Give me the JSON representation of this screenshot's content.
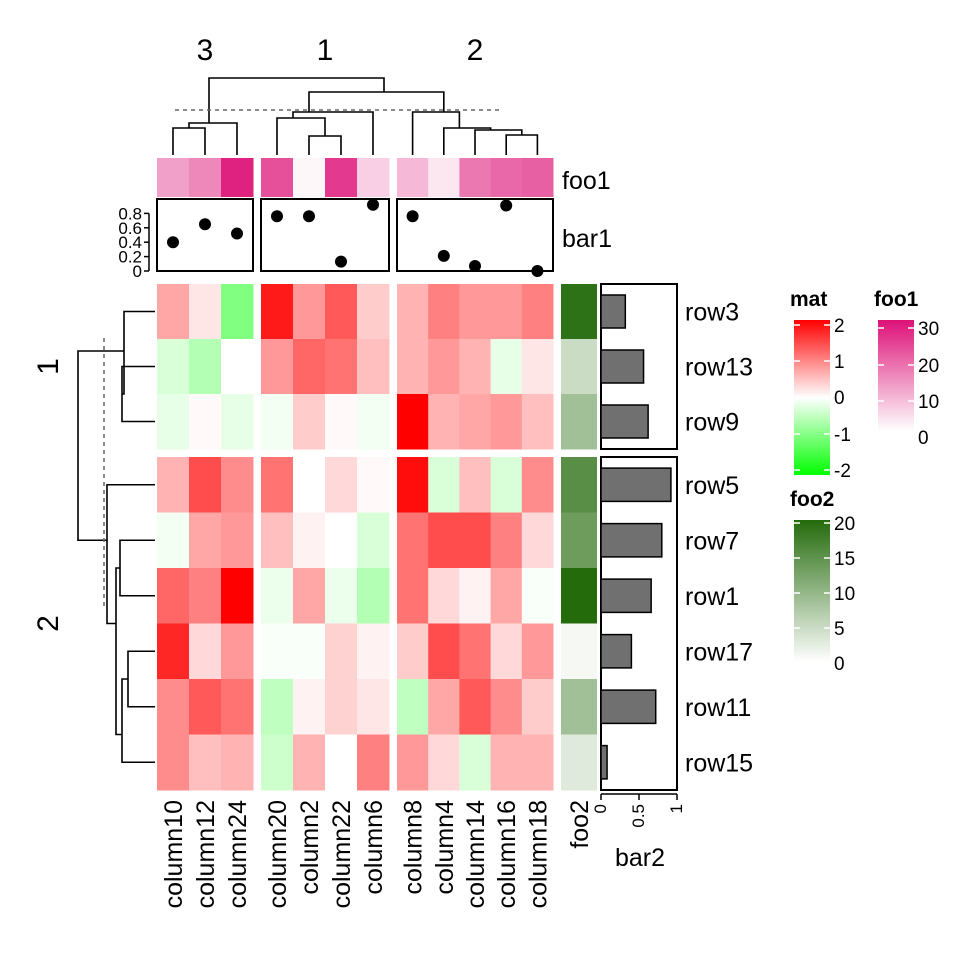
{
  "chart_data": {
    "type": "heatmap",
    "heatmap_name": "mat",
    "column_groups": [
      {
        "label": "3",
        "columns": [
          "column10",
          "column12",
          "column24"
        ]
      },
      {
        "label": "1",
        "columns": [
          "column20",
          "column2",
          "column22",
          "column6"
        ]
      },
      {
        "label": "2",
        "columns": [
          "column8",
          "column4",
          "column14",
          "column16",
          "column18"
        ]
      }
    ],
    "row_groups": [
      {
        "label": "1",
        "rows": [
          "row3",
          "row13",
          "row9"
        ]
      },
      {
        "label": "2",
        "rows": [
          "row5",
          "row7",
          "row1",
          "row17",
          "row11",
          "row15"
        ]
      }
    ],
    "matrix": [
      [
        0.7,
        0.2,
        -1.0,
        1.8,
        0.8,
        1.3,
        0.4,
        0.6,
        1.0,
        0.8,
        0.8,
        1.0
      ],
      [
        -0.3,
        -0.6,
        0.0,
        0.8,
        1.2,
        1.1,
        0.5,
        0.6,
        0.8,
        0.6,
        -0.2,
        0.2
      ],
      [
        -0.2,
        0.05,
        -0.2,
        -0.1,
        0.4,
        0.05,
        -0.1,
        2.0,
        0.6,
        0.7,
        0.8,
        0.5
      ],
      [
        0.6,
        1.4,
        0.9,
        1.1,
        0.0,
        0.3,
        0.05,
        1.9,
        -0.3,
        0.5,
        -0.3,
        0.9
      ],
      [
        -0.1,
        0.7,
        0.8,
        0.5,
        0.1,
        0.0,
        -0.3,
        1.1,
        1.4,
        1.4,
        1.0,
        0.3
      ],
      [
        1.2,
        1.0,
        2.0,
        -0.15,
        0.7,
        -0.15,
        -0.6,
        1.1,
        0.3,
        0.1,
        0.7,
        -0.05
      ],
      [
        1.7,
        0.3,
        0.8,
        -0.05,
        -0.05,
        0.35,
        0.1,
        0.4,
        1.4,
        1.1,
        0.3,
        0.8
      ],
      [
        0.9,
        1.3,
        1.1,
        -0.5,
        0.1,
        0.35,
        0.2,
        -0.5,
        0.7,
        1.3,
        0.9,
        0.4
      ],
      [
        0.9,
        0.5,
        0.6,
        -0.4,
        0.6,
        0.0,
        1.0,
        0.8,
        0.3,
        -0.3,
        0.6,
        0.6
      ]
    ],
    "foo1": {
      "name": "foo1",
      "values": [
        12,
        15,
        28,
        22,
        1,
        25,
        6,
        9,
        3,
        17,
        19,
        20
      ]
    },
    "bar1": {
      "name": "bar1",
      "values": [
        0.4,
        0.65,
        0.52,
        0.76,
        0.76,
        0.13,
        0.92,
        0.76,
        0.21,
        0.07,
        0.91,
        0.0
      ],
      "ylim": [
        0,
        1
      ],
      "ticks": [
        "0",
        "0.2",
        "0.4",
        "0.6",
        "0.8"
      ]
    },
    "foo2": {
      "name": "foo2",
      "values": [
        20,
        5,
        9,
        16,
        14,
        21,
        1,
        9,
        3
      ]
    },
    "bar2": {
      "name": "bar2",
      "values": [
        0.32,
        0.56,
        0.62,
        0.92,
        0.8,
        0.66,
        0.4,
        0.72,
        0.08
      ],
      "xlim": [
        0,
        1
      ],
      "ticks": [
        "0",
        "0.5",
        "1"
      ]
    },
    "legends": [
      {
        "title": "mat",
        "ticks": [
          "2",
          "1",
          "0",
          "-1",
          "-2"
        ]
      },
      {
        "title": "foo1",
        "ticks": [
          "30",
          "20",
          "10",
          "0"
        ]
      },
      {
        "title": "foo2",
        "ticks": [
          "20",
          "15",
          "10",
          "5",
          "0"
        ]
      }
    ],
    "colors": {
      "mat_low": "#00FF00",
      "mat_mid": "#FFFFFF",
      "mat_high": "#FF0000",
      "foo1_low": "#FFFFFF",
      "foo1_high": "#DD1177",
      "foo2_low": "#FFFFFF",
      "foo2_high": "#246B0C",
      "bar_fill": "#707070"
    }
  }
}
